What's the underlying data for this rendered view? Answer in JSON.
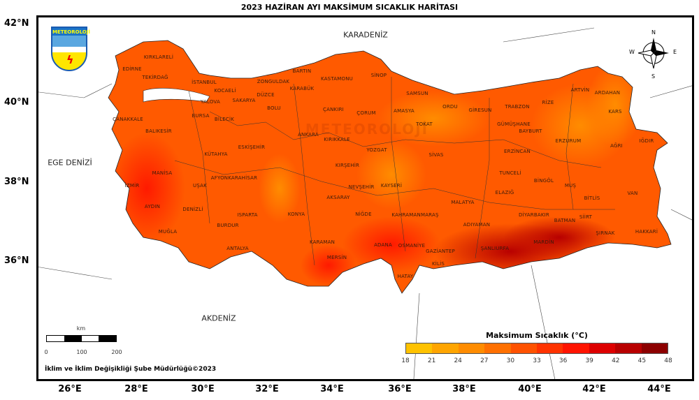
{
  "title": "2023 HAZİRAN AYI MAKSİMUM SICAKLIK HARİTASI",
  "logo_text": "METEOROLOJİ",
  "watermark": "METEOROLOJİ",
  "lat_labels": [
    "42°N",
    "40°N",
    "38°N",
    "36°N"
  ],
  "lon_labels": [
    "26°E",
    "28°E",
    "30°E",
    "32°E",
    "34°E",
    "36°E",
    "38°E",
    "40°E",
    "42°E",
    "44°E"
  ],
  "seas": {
    "black": "KARADENİZ",
    "aegean": "EGE DENİZİ",
    "med": "AKDENİZ"
  },
  "compass": {
    "n": "N",
    "s": "S",
    "e": "E",
    "w": "W"
  },
  "legend": {
    "title": "Maksimum Sıcaklık (°C)",
    "ticks": [
      "18",
      "21",
      "24",
      "27",
      "30",
      "33",
      "36",
      "39",
      "42",
      "45",
      "48"
    ],
    "colors": [
      "#ffc200",
      "#ffa500",
      "#ff8c00",
      "#ff7000",
      "#ff5200",
      "#ff3300",
      "#ff1400",
      "#dd0000",
      "#b80000",
      "#8c0000"
    ]
  },
  "scale": {
    "unit": "km",
    "ticks": [
      "0",
      "100",
      "200"
    ]
  },
  "credit": "İklim ve İklim Değişikliği Şube Müdürlüğü©2023",
  "provinces": [
    "KIRKLARELİ",
    "EDİRNE",
    "TEKİRDAĞ",
    "İSTANBUL",
    "ZONGULDAK",
    "BARTIN",
    "KARABÜK",
    "KASTAMONU",
    "SİNOP",
    "KOCAELİ",
    "SAKARYA",
    "DÜZCE",
    "BOLU",
    "YALOVA",
    "BURSA",
    "BİLECİK",
    "ÇANAKKALE",
    "BALIKESİR",
    "ÇANKIRI",
    "ÇORUM",
    "AMASYA",
    "SAMSUN",
    "ORDU",
    "GİRESUN",
    "TRABZON",
    "RİZE",
    "ARTVİN",
    "ARDAHAN",
    "KARS",
    "GÜMÜŞHANE",
    "BAYBURT",
    "ERZURUM",
    "AĞRI",
    "IĞDIR",
    "ERZİNCAN",
    "TOKAT",
    "ANKARA",
    "KIRIKKALE",
    "YOZGAT",
    "SİVAS",
    "KIRŞEHİR",
    "ESKİŞEHİR",
    "KÜTAHYA",
    "MANİSA",
    "İZMİR",
    "UŞAK",
    "AFYONKARAHİSAR",
    "NEVŞEHİR",
    "KAYSERİ",
    "AKSARAY",
    "NİĞDE",
    "TUNCELİ",
    "BİNGÖL",
    "MUŞ",
    "ELAZIĞ",
    "BİTLİS",
    "VAN",
    "MALATYA",
    "AYDIN",
    "DENİZLİ",
    "ISPARTA",
    "KONYA",
    "KAHRAMANMARAŞ",
    "ADIYAMAN",
    "DİYARBAKIR",
    "BATMAN",
    "SİİRT",
    "ŞIRNAK",
    "HAKKARİ",
    "MUĞLA",
    "BURDUR",
    "ANTALYA",
    "KARAMAN",
    "MERSİN",
    "ADANA",
    "OSMANİYE",
    "GAZİANTEP",
    "KİLİS",
    "ŞANLIURFA",
    "MARDİN",
    "HATAY"
  ]
}
